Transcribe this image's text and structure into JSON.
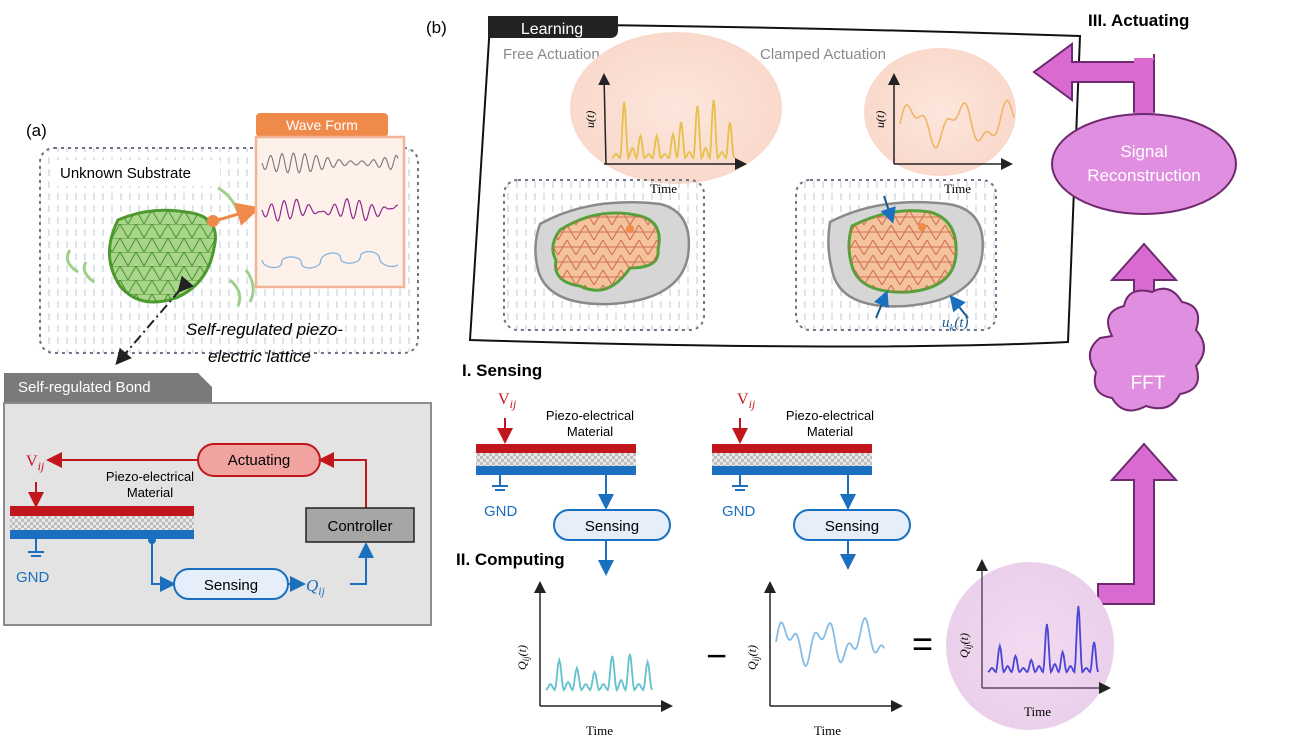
{
  "panel_a": {
    "label": "(a)",
    "substrate_label": "Unknown Substrate",
    "waveform_title": "Wave Form",
    "lattice_caption_1": "Self-regulated piezo-",
    "lattice_caption_2": "electric lattice",
    "bond_title": "Self-regulated Bond",
    "actuating": "Actuating",
    "voltage": "V",
    "voltage_sub": "ij",
    "material_1": "Piezo-electrical",
    "material_2": "Material",
    "controller": "Controller",
    "gnd": "GND",
    "sensing": "Sensing",
    "charge": "Q",
    "charge_sub": "ij"
  },
  "panel_b": {
    "label": "(b)",
    "learning_title": "Learning",
    "free_actuation": "Free Actuation",
    "clamped_actuation": "Clamped Actuation",
    "u_axis": "u(t)",
    "time_axis": "Time",
    "uk_label": "u",
    "uk_sub": "k",
    "uk_suffix": "(t)",
    "actuating_title": "III. Actuating",
    "signal_1": "Signal",
    "signal_2": "Reconstruction",
    "fft": "FFT",
    "sensing_title": "I. Sensing",
    "voltage": "V",
    "voltage_sub": "ij",
    "material_1": "Piezo-electrical",
    "material_2": "Material",
    "gnd": "GND",
    "sensing": "Sensing",
    "computing_title": "II. Computing",
    "q_axis": "Q",
    "q_sub": "ij",
    "q_suffix": "(t)",
    "minus": "−",
    "equals": "="
  },
  "colors": {
    "red": "#c0161c",
    "blue": "#1a6fbf",
    "orange": "#f08a4b",
    "magenta": "#d86ad0",
    "green": "#6ab04c"
  }
}
